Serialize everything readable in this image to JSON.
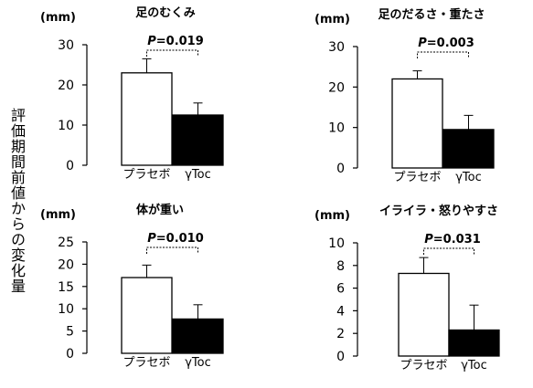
{
  "figure": {
    "ylabel": "評価期間前値からの変化量"
  },
  "chart_data": [
    {
      "type": "bar",
      "title": "足のむくみ",
      "unit": "(mm)",
      "pvalue": "P=0.019",
      "categories": [
        "プラセボ",
        "γToc"
      ],
      "values": [
        23,
        12.5
      ],
      "errors": [
        3.5,
        3
      ],
      "ylim": [
        0,
        30
      ],
      "yticks": [
        "0",
        "10",
        "20",
        "30"
      ],
      "colors": [
        "#ffffff",
        "#000000"
      ]
    },
    {
      "type": "bar",
      "title": "足のだるさ・重たさ",
      "unit": "(mm)",
      "pvalue": "P=0.003",
      "categories": [
        "プラセボ",
        "γToc"
      ],
      "values": [
        22,
        9.5
      ],
      "errors": [
        2,
        3.5
      ],
      "ylim": [
        0,
        30
      ],
      "yticks": [
        "0",
        "10",
        "20",
        "30"
      ],
      "colors": [
        "#ffffff",
        "#000000"
      ]
    },
    {
      "type": "bar",
      "title": "体が重い",
      "unit": "(mm)",
      "pvalue": "P=0.010",
      "categories": [
        "プラセボ",
        "γToc"
      ],
      "values": [
        17,
        7.7
      ],
      "errors": [
        2.8,
        3.2
      ],
      "ylim": [
        0,
        25
      ],
      "yticks": [
        "0",
        "5",
        "10",
        "15",
        "20",
        "25"
      ],
      "colors": [
        "#ffffff",
        "#000000"
      ]
    },
    {
      "type": "bar",
      "title": "イライラ・怒りやすさ",
      "unit": "(mm)",
      "pvalue": "P=0.031",
      "categories": [
        "プラセボ",
        "γToc"
      ],
      "values": [
        7.3,
        2.3
      ],
      "errors": [
        1.4,
        2.2
      ],
      "ylim": [
        0,
        10
      ],
      "yticks": [
        "0",
        "2",
        "4",
        "6",
        "8",
        "10"
      ],
      "colors": [
        "#ffffff",
        "#000000"
      ]
    }
  ]
}
